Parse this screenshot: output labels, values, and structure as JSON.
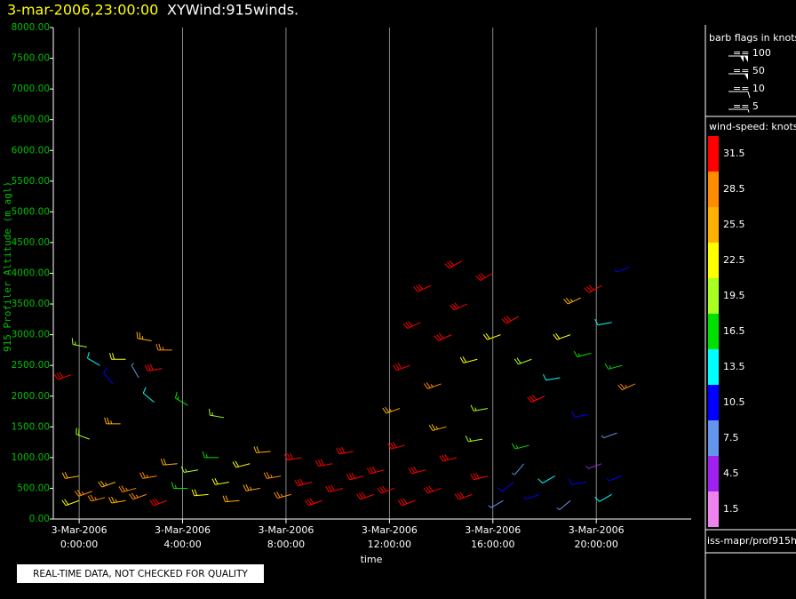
{
  "chart_data": {
    "type": "barb",
    "title": "3-mar-2006,23:00:00",
    "subtitle": "XYWind:915winds.",
    "y_label": "915 Profiler Altitude (m agl)",
    "x_label": "time",
    "footer": "REAL-TIME DATA, NOT CHECKED FOR QUALITY",
    "source": "iss-mapr/prof915h",
    "xlim": [
      -1.0,
      23.67
    ],
    "ylim": [
      0,
      8000
    ],
    "xticks": [
      {
        "value": 0,
        "date": "3-Mar-2006",
        "label": "0:00:00"
      },
      {
        "value": 4,
        "date": "3-Mar-2006",
        "label": "4:00:00"
      },
      {
        "value": 8,
        "date": "3-Mar-2006",
        "label": "8:00:00"
      },
      {
        "value": 12,
        "date": "3-Mar-2006",
        "label": "12:00:00"
      },
      {
        "value": 16,
        "date": "3-Mar-2006",
        "label": "16:00:00"
      },
      {
        "value": 20,
        "date": "3-Mar-2006",
        "label": "20:00:00"
      }
    ],
    "yticks": [
      {
        "value": 0,
        "label": "0.00"
      },
      {
        "value": 500,
        "label": "500.00"
      },
      {
        "value": 1000,
        "label": "1000.00"
      },
      {
        "value": 1500,
        "label": "1500.00"
      },
      {
        "value": 2000,
        "label": "2000.00"
      },
      {
        "value": 2500,
        "label": "2500.00"
      },
      {
        "value": 3000,
        "label": "3000.00"
      },
      {
        "value": 3500,
        "label": "3500.00"
      },
      {
        "value": 4000,
        "label": "4000.00"
      },
      {
        "value": 4500,
        "label": "4500.00"
      },
      {
        "value": 5000,
        "label": "5000.00"
      },
      {
        "value": 5500,
        "label": "5500.00"
      },
      {
        "value": 6000,
        "label": "6000.00"
      },
      {
        "value": 6500,
        "label": "6500.00"
      },
      {
        "value": 7000,
        "label": "7000.00"
      },
      {
        "value": 7500,
        "label": "7500.00"
      },
      {
        "value": 8000,
        "label": "8000.00"
      }
    ],
    "vertical_grid": true,
    "barb_legend": {
      "title": "barb flags in knots",
      "entries": [
        {
          "speed": 100,
          "label": "== 100"
        },
        {
          "speed": 50,
          "label": "== 50"
        },
        {
          "speed": 10,
          "label": "== 10"
        },
        {
          "speed": 5,
          "label": "== 5"
        }
      ]
    },
    "colorbar": {
      "title": "wind-speed: knots",
      "levels": [
        31.5,
        28.5,
        25.5,
        22.5,
        19.5,
        16.5,
        13.5,
        10.5,
        7.5,
        4.5,
        1.5
      ],
      "colors": [
        "#ff0000",
        "#ff8c00",
        "#ffb000",
        "#ffff00",
        "#a8ff20",
        "#00e000",
        "#00ffff",
        "#0000ff",
        "#6495ed",
        "#a020f0",
        "#ee82ee"
      ]
    },
    "barbs": {
      "x": [
        0,
        0,
        0.5,
        1,
        1.4,
        1.8,
        2.2,
        2.6,
        3,
        3.4,
        3.8,
        4.2,
        4.6,
        5,
        5.4,
        5.8,
        6.2,
        6.6,
        7,
        7.4,
        7.8,
        8.2,
        8.6,
        9,
        9.4,
        9.8,
        10.2,
        10.6,
        11,
        11.4,
        11.8,
        12.2,
        12.6,
        13,
        13.4,
        14,
        14.6,
        15.2,
        15.8,
        16.4,
        16.8,
        17.2,
        17.8,
        18.4,
        19,
        19.6,
        20.2,
        20.6,
        21,
        -0.3,
        0.3,
        0.8,
        1.3,
        1.8,
        2.3,
        2.8,
        3.2,
        3.6,
        0.4,
        1.6,
        2.9,
        4.2,
        5.6,
        12.4,
        12.8,
        13.2,
        13.6,
        14,
        14.4,
        14.8,
        15,
        15.4,
        15.8,
        16,
        16.3,
        14.2,
        15.6,
        17,
        17.5,
        18,
        18.6,
        19,
        19.4,
        19.8,
        20.2,
        20.6,
        21,
        21.3,
        21.5,
        19.7,
        20.8,
        17.4
      ],
      "y": [
        300,
        700,
        450,
        350,
        600,
        300,
        500,
        400,
        700,
        300,
        900,
        500,
        800,
        400,
        1000,
        600,
        300,
        900,
        500,
        1100,
        700,
        400,
        1000,
        600,
        300,
        900,
        500,
        1100,
        700,
        400,
        800,
        500,
        1200,
        300,
        800,
        500,
        1000,
        400,
        700,
        300,
        600,
        900,
        400,
        700,
        300,
        600,
        900,
        400,
        700,
        2350,
        2800,
        2500,
        2200,
        2600,
        2300,
        2900,
        2450,
        2750,
        1300,
        1550,
        1900,
        1850,
        1650,
        1800,
        2500,
        3200,
        3800,
        2200,
        3000,
        4200,
        3500,
        2600,
        1800,
        4000,
        3000,
        1500,
        1300,
        3300,
        2600,
        2000,
        2300,
        3000,
        3600,
        2700,
        3800,
        3200,
        2500,
        4100,
        2200,
        1700,
        1400,
        1200
      ],
      "speed": [
        22,
        24,
        27,
        28,
        26,
        25,
        29,
        28,
        27,
        30,
        24,
        17,
        19,
        21,
        16,
        22,
        24,
        23,
        26,
        24,
        27,
        28,
        30,
        31,
        32,
        31,
        32,
        30,
        32,
        33,
        31,
        33,
        31,
        34,
        33,
        34,
        33,
        32,
        30,
        8,
        10,
        6,
        9,
        12,
        7,
        11,
        5,
        13,
        9,
        32,
        18,
        14,
        10,
        22,
        8,
        25,
        31,
        27,
        20,
        26,
        12,
        16,
        19,
        26,
        30,
        33,
        34,
        28,
        31,
        34,
        33,
        22,
        19,
        33,
        21,
        25,
        18,
        33,
        20,
        30,
        14,
        22,
        25,
        17,
        31,
        12,
        15,
        9,
        28,
        10,
        7,
        16
      ],
      "direction": [
        250,
        260,
        250,
        255,
        250,
        260,
        255,
        250,
        260,
        250,
        265,
        270,
        260,
        265,
        270,
        260,
        265,
        255,
        260,
        265,
        260,
        255,
        260,
        255,
        250,
        260,
        255,
        260,
        255,
        250,
        255,
        250,
        255,
        250,
        255,
        250,
        255,
        250,
        255,
        240,
        230,
        220,
        250,
        240,
        230,
        260,
        250,
        240,
        250,
        250,
        280,
        300,
        320,
        270,
        330,
        280,
        260,
        270,
        290,
        270,
        310,
        300,
        280,
        250,
        250,
        245,
        245,
        250,
        245,
        240,
        245,
        255,
        260,
        240,
        250,
        255,
        260,
        240,
        250,
        245,
        260,
        250,
        245,
        255,
        240,
        260,
        255,
        250,
        245,
        260,
        250,
        255
      ]
    }
  }
}
